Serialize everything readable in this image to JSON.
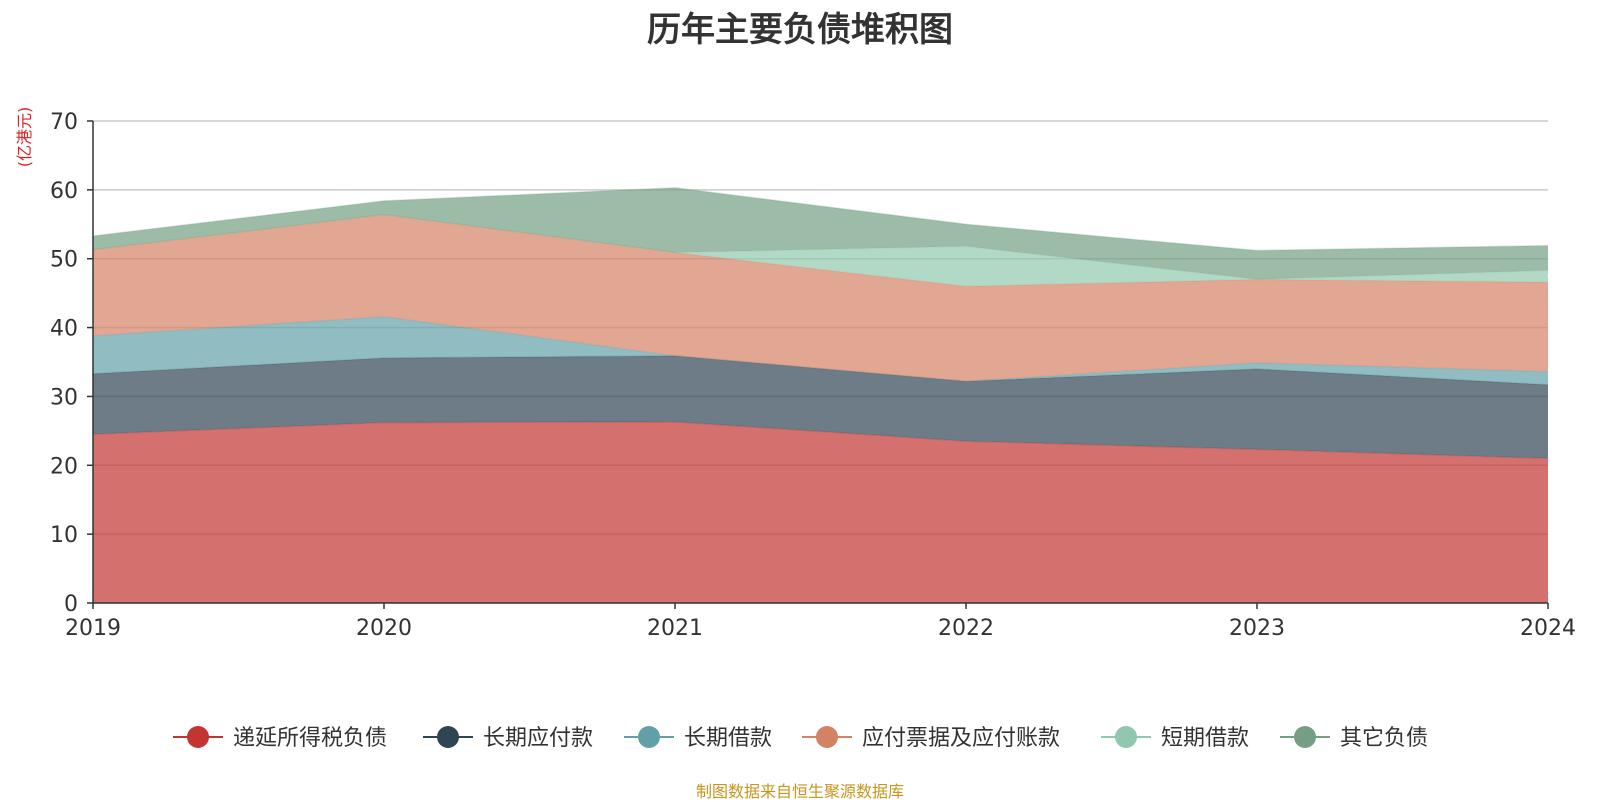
{
  "chart_data": {
    "type": "area",
    "stacked": true,
    "title": "历年主要负债堆积图",
    "unit_label": "(亿港元)",
    "x": [
      "2019",
      "2020",
      "2021",
      "2022",
      "2023",
      "2024"
    ],
    "ylim": [
      0,
      70
    ],
    "yticks": [
      0,
      10,
      20,
      30,
      40,
      50,
      60,
      70
    ],
    "grid": true,
    "legend_position": "bottom",
    "series": [
      {
        "name": "递延所得税负债",
        "color": "#c23531",
        "values": [
          24.5,
          26.2,
          26.3,
          23.5,
          22.3,
          21.0
        ]
      },
      {
        "name": "长期应付款",
        "color": "#2f4554",
        "values": [
          8.8,
          9.4,
          9.6,
          8.7,
          11.7,
          10.7
        ]
      },
      {
        "name": "长期借款",
        "color": "#61a0a8",
        "values": [
          5.5,
          6.0,
          0.0,
          0.0,
          0.9,
          1.9
        ]
      },
      {
        "name": "应付票据及应付账款",
        "color": "#d48265",
        "values": [
          12.5,
          14.8,
          15.0,
          13.8,
          12.1,
          13.0
        ]
      },
      {
        "name": "短期借款",
        "color": "#91c7ae",
        "values": [
          0.0,
          0.0,
          0.0,
          5.8,
          0.0,
          1.7
        ]
      },
      {
        "name": "其它负债",
        "color": "#749f83",
        "values": [
          2.0,
          2.0,
          9.4,
          3.2,
          4.2,
          3.6
        ]
      }
    ],
    "source_note": "制图数据来自恒生聚源数据库"
  }
}
